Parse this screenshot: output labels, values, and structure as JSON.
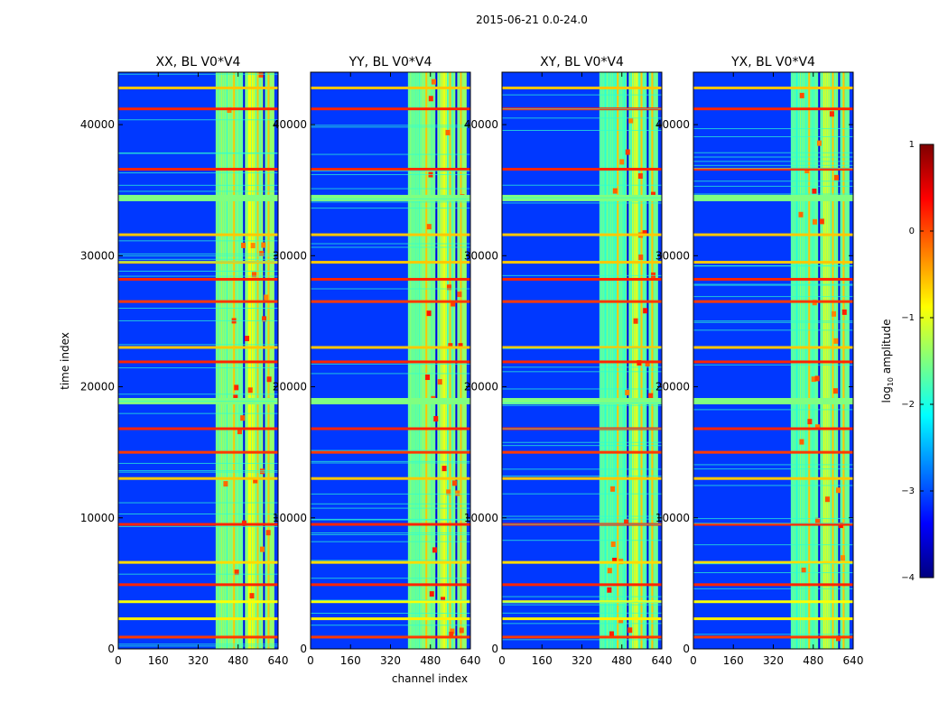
{
  "figure": {
    "suptitle": "2015-06-21 0.0-24.0",
    "xlabel": "channel index",
    "ylabel": "time index"
  },
  "chart_data": {
    "type": "heatmap",
    "title": "2015-06-21 0.0-24.0",
    "xlabel": "channel index",
    "ylabel": "time index",
    "xlim": [
      0,
      640
    ],
    "ylim": [
      0,
      44000
    ],
    "xticks": [
      0,
      160,
      320,
      480,
      640
    ],
    "yticks": [
      0,
      10000,
      20000,
      30000,
      40000
    ],
    "xtick_labels": [
      "0",
      "160",
      "320",
      "480",
      "640"
    ],
    "ytick_labels": [
      "0",
      "10000",
      "20000",
      "30000",
      "40000"
    ],
    "panels": [
      {
        "title": "XX, BL V0*V4",
        "pol": "XX"
      },
      {
        "title": "YY, BL V0*V4",
        "pol": "YY"
      },
      {
        "title": "XY, BL V0*V4",
        "pol": "XY"
      },
      {
        "title": "YX, BL V0*V4",
        "pol": "YX"
      }
    ],
    "rfi_bands": [
      {
        "from": 390,
        "to": 600,
        "level": -1.6
      },
      {
        "from": 520,
        "to": 545,
        "level": -0.9
      },
      {
        "from": 605,
        "to": 625,
        "level": -1.4
      }
    ],
    "flagged_rows": [
      {
        "t": 900,
        "level": 0.1
      },
      {
        "t": 2300,
        "level": -0.8
      },
      {
        "t": 3600,
        "level": -0.9
      },
      {
        "t": 4900,
        "level": 0.2
      },
      {
        "t": 6600,
        "level": -0.7
      },
      {
        "t": 9500,
        "level": 0.2
      },
      {
        "t": 13000,
        "level": -0.6
      },
      {
        "t": 15000,
        "level": 0.1
      },
      {
        "t": 16800,
        "level": 0.2
      },
      {
        "t": 18900,
        "level": -1.5
      },
      {
        "t": 21900,
        "level": 0.2
      },
      {
        "t": 23000,
        "level": -0.6
      },
      {
        "t": 26500,
        "level": 0.1
      },
      {
        "t": 28200,
        "level": 0.2
      },
      {
        "t": 29500,
        "level": -0.6
      },
      {
        "t": 31600,
        "level": -0.6
      },
      {
        "t": 34400,
        "level": -1.5
      },
      {
        "t": 36600,
        "level": 0.2
      },
      {
        "t": 41200,
        "level": 0.2
      },
      {
        "t": 42800,
        "level": -0.6
      }
    ],
    "colorbar": {
      "label": "log10 amplitude",
      "label_main": "log",
      "label_sub": "10",
      "label_rest": " amplitude",
      "min": -4,
      "max": 1,
      "ticks": [
        1,
        0,
        -1,
        -2,
        -3,
        -4
      ],
      "tick_labels": [
        "1",
        "0",
        "−1",
        "−2",
        "−3",
        "−4"
      ],
      "colormap": "jet"
    }
  },
  "colors": {
    "jet_stops": [
      "#00007f",
      "#0000ff",
      "#007fff",
      "#00ffff",
      "#7fff7f",
      "#ffff00",
      "#ff7f00",
      "#ff0000",
      "#7f0000"
    ]
  }
}
